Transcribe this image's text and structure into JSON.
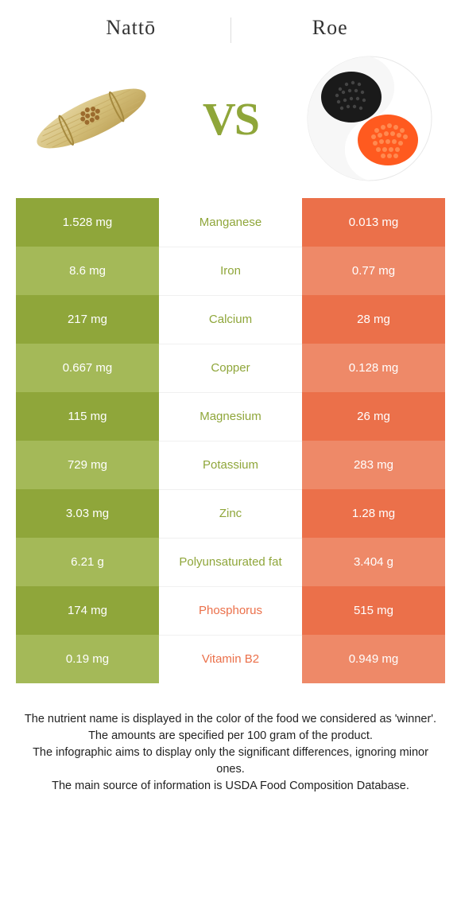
{
  "header": {
    "left_title": "Nattō",
    "right_title": "Roe",
    "vs": "VS"
  },
  "colors": {
    "green_solid": "#8fa63a",
    "green_light": "#a4b958",
    "orange_solid": "#eb704a",
    "orange_light": "#ee8968",
    "mid_bg": "#ffffff",
    "text_white": "#ffffff"
  },
  "rows": [
    {
      "left": "1.528 mg",
      "label": "Manganese",
      "right": "0.013 mg",
      "winner": "left"
    },
    {
      "left": "8.6 mg",
      "label": "Iron",
      "right": "0.77 mg",
      "winner": "left"
    },
    {
      "left": "217 mg",
      "label": "Calcium",
      "right": "28 mg",
      "winner": "left"
    },
    {
      "left": "0.667 mg",
      "label": "Copper",
      "right": "0.128 mg",
      "winner": "left"
    },
    {
      "left": "115 mg",
      "label": "Magnesium",
      "right": "26 mg",
      "winner": "left"
    },
    {
      "left": "729 mg",
      "label": "Potassium",
      "right": "283 mg",
      "winner": "left"
    },
    {
      "left": "3.03 mg",
      "label": "Zinc",
      "right": "1.28 mg",
      "winner": "left"
    },
    {
      "left": "6.21 g",
      "label": "Polyunsaturated fat",
      "right": "3.404 g",
      "winner": "left"
    },
    {
      "left": "174 mg",
      "label": "Phosphorus",
      "right": "515 mg",
      "winner": "right"
    },
    {
      "left": "0.19 mg",
      "label": "Vitamin B2",
      "right": "0.949 mg",
      "winner": "right"
    }
  ],
  "footer": {
    "line1": "The nutrient name is displayed in the color of the food we considered as 'winner'.",
    "line2": "The amounts are specified per 100 gram of the product.",
    "line3": "The infographic aims to display only the significant differences, ignoring minor ones.",
    "line4": "The main source of information is USDA Food Composition Database."
  }
}
